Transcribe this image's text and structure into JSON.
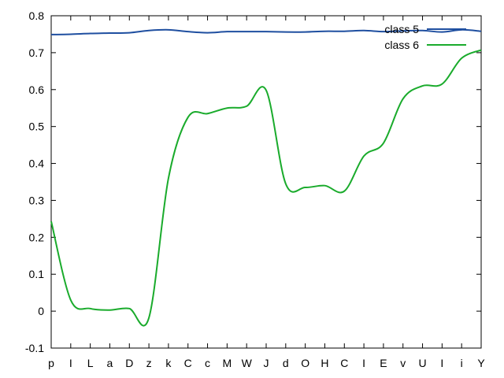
{
  "chart_data": {
    "type": "line",
    "categories": [
      "p",
      "I",
      "L",
      "a",
      "D",
      "z",
      "k",
      "C",
      "c",
      "M",
      "W",
      "J",
      "d",
      "O",
      "H",
      "C",
      "I",
      "E",
      "v",
      "U",
      "I",
      "i",
      "Y"
    ],
    "ylim": [
      -0.1,
      0.8
    ],
    "yticks": [
      -0.1,
      0,
      0.1,
      0.2,
      0.3,
      0.4,
      0.5,
      0.6,
      0.7,
      0.8
    ],
    "grid": false,
    "legend_position": "top-right",
    "series": [
      {
        "name": "class 5",
        "color": "#1f4fa0",
        "values": [
          0.749,
          0.75,
          0.752,
          0.753,
          0.754,
          0.76,
          0.762,
          0.757,
          0.754,
          0.757,
          0.757,
          0.757,
          0.756,
          0.756,
          0.758,
          0.758,
          0.76,
          0.757,
          0.759,
          0.76,
          0.756,
          0.762,
          0.758
        ]
      },
      {
        "name": "class 6",
        "color": "#1aab2c",
        "values": [
          0.243,
          0.03,
          0.007,
          0.003,
          0.007,
          -0.018,
          0.36,
          0.525,
          0.535,
          0.55,
          0.555,
          0.598,
          0.345,
          0.335,
          0.34,
          0.325,
          0.42,
          0.455,
          0.575,
          0.61,
          0.615,
          0.685,
          0.707
        ]
      }
    ]
  }
}
